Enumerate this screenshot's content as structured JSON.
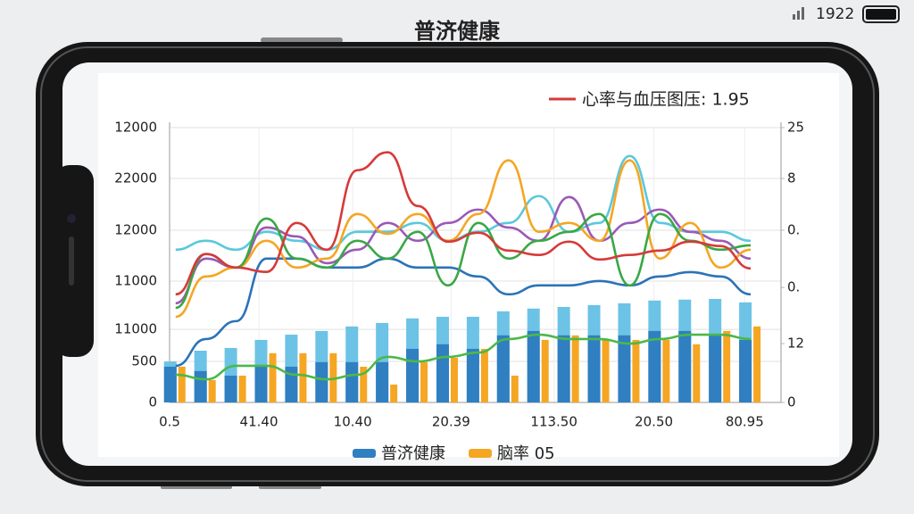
{
  "header": {
    "title": "普济健康",
    "time": "1922"
  },
  "chart_data": {
    "type": "combo",
    "x": [
      0,
      1,
      2,
      3,
      4,
      5,
      6,
      7,
      8,
      9,
      10,
      11,
      12,
      13,
      14,
      15,
      16,
      17,
      18,
      19
    ],
    "xlim": [
      -0.2,
      20
    ],
    "xticks": [
      {
        "value": -0.2,
        "label": "0.5"
      },
      {
        "value": 2.75,
        "label": "41.40"
      },
      {
        "value": 5.85,
        "label": "10.40"
      },
      {
        "value": 9.1,
        "label": "20.39"
      },
      {
        "value": 12.5,
        "label": "113.50"
      },
      {
        "value": 15.8,
        "label": "20.50"
      },
      {
        "value": 18.8,
        "label": "80.95"
      }
    ],
    "ylim": [
      0,
      12000
    ],
    "yticks": [
      0,
      {
        "value": 1790,
        "label": "500"
      },
      {
        "value": 3190,
        "label": "11000"
      },
      {
        "value": 5300,
        "label": "11000"
      },
      {
        "value": 7520,
        "label": "12000"
      },
      {
        "value": 9780,
        "label": "22000"
      },
      {
        "value": 12000,
        "label": "12000"
      }
    ],
    "y2lim": [
      0,
      12000
    ],
    "y2ticks": [
      0,
      {
        "value": 2570,
        "label": "12"
      },
      {
        "value": 5020,
        "label": "0."
      },
      {
        "value": 7520,
        "label": "0."
      },
      {
        "value": 9780,
        "label": "8"
      },
      {
        "value": 12000,
        "label": "25"
      }
    ],
    "grid": true,
    "series": [
      {
        "type": "bar",
        "color": "#6cc3e6",
        "values": [
          1790,
          2260,
          2380,
          2730,
          2960,
          3120,
          3320,
          3470,
          3670,
          3740,
          3740,
          3980,
          4100,
          4170,
          4250,
          4330,
          4450,
          4490,
          4520,
          4370
        ]
      },
      {
        "name": "普济健康",
        "type": "bar",
        "color": "#2f7fc1",
        "values": [
          1560,
          1370,
          1170,
          1560,
          1560,
          1760,
          1760,
          1760,
          2340,
          2540,
          2340,
          2930,
          3120,
          2930,
          2930,
          2930,
          3120,
          3120,
          2930,
          2730
        ]
      },
      {
        "name": "脑率 05",
        "type": "bar",
        "color": "#f5a623",
        "values": [
          1560,
          980,
          1170,
          2150,
          2150,
          2150,
          1560,
          780,
          1760,
          1950,
          2340,
          1170,
          2730,
          2930,
          2730,
          2730,
          2730,
          2540,
          3120,
          3320
        ]
      },
      {
        "type": "line",
        "color": "#2b73b8",
        "values": [
          1600,
          2770,
          3550,
          6280,
          6280,
          5890,
          5890,
          6280,
          5890,
          5890,
          5500,
          4720,
          5110,
          5110,
          5300,
          5110,
          5500,
          5690,
          5500,
          4720
        ]
      },
      {
        "type": "line",
        "color": "#4cb848",
        "values": [
          1210,
          1010,
          1600,
          1600,
          1210,
          1010,
          1210,
          1990,
          1790,
          1990,
          2180,
          2770,
          2960,
          2770,
          2770,
          2570,
          2770,
          2960,
          2960,
          2770
        ]
      },
      {
        "type": "line",
        "color": "#5bc8dc",
        "values": [
          6670,
          7060,
          6670,
          7450,
          7060,
          6670,
          7450,
          7450,
          7840,
          7060,
          7450,
          7840,
          9010,
          7450,
          7840,
          10760,
          7840,
          7450,
          7450,
          7060
        ]
      },
      {
        "type": "line",
        "color": "#9b59b6",
        "values": [
          4330,
          6280,
          5890,
          7640,
          7250,
          6080,
          6670,
          7840,
          7060,
          7840,
          8420,
          7640,
          7060,
          8970,
          7060,
          7840,
          8420,
          7450,
          7060,
          6280
        ]
      },
      {
        "type": "line",
        "color": "#f5a623",
        "values": [
          3740,
          5500,
          5890,
          7060,
          5890,
          6280,
          8230,
          7360,
          8230,
          7060,
          8230,
          10570,
          7450,
          7840,
          7060,
          10570,
          6280,
          7840,
          5890,
          6670
        ]
      },
      {
        "type": "line",
        "color": "#3aa845",
        "values": [
          4130,
          6480,
          5890,
          8030,
          6280,
          5890,
          7060,
          6280,
          7450,
          5110,
          7840,
          6280,
          7060,
          7450,
          8230,
          5110,
          8230,
          7060,
          6670,
          6860
        ]
      },
      {
        "name": "心率与血压图压: 1.95",
        "type": "line",
        "color": "#d63a3a",
        "values": [
          4720,
          6480,
          5890,
          5700,
          7840,
          6670,
          10140,
          10920,
          8580,
          7020,
          7410,
          6630,
          6440,
          7020,
          6240,
          6440,
          6630,
          7020,
          6830,
          5850
        ]
      }
    ]
  }
}
